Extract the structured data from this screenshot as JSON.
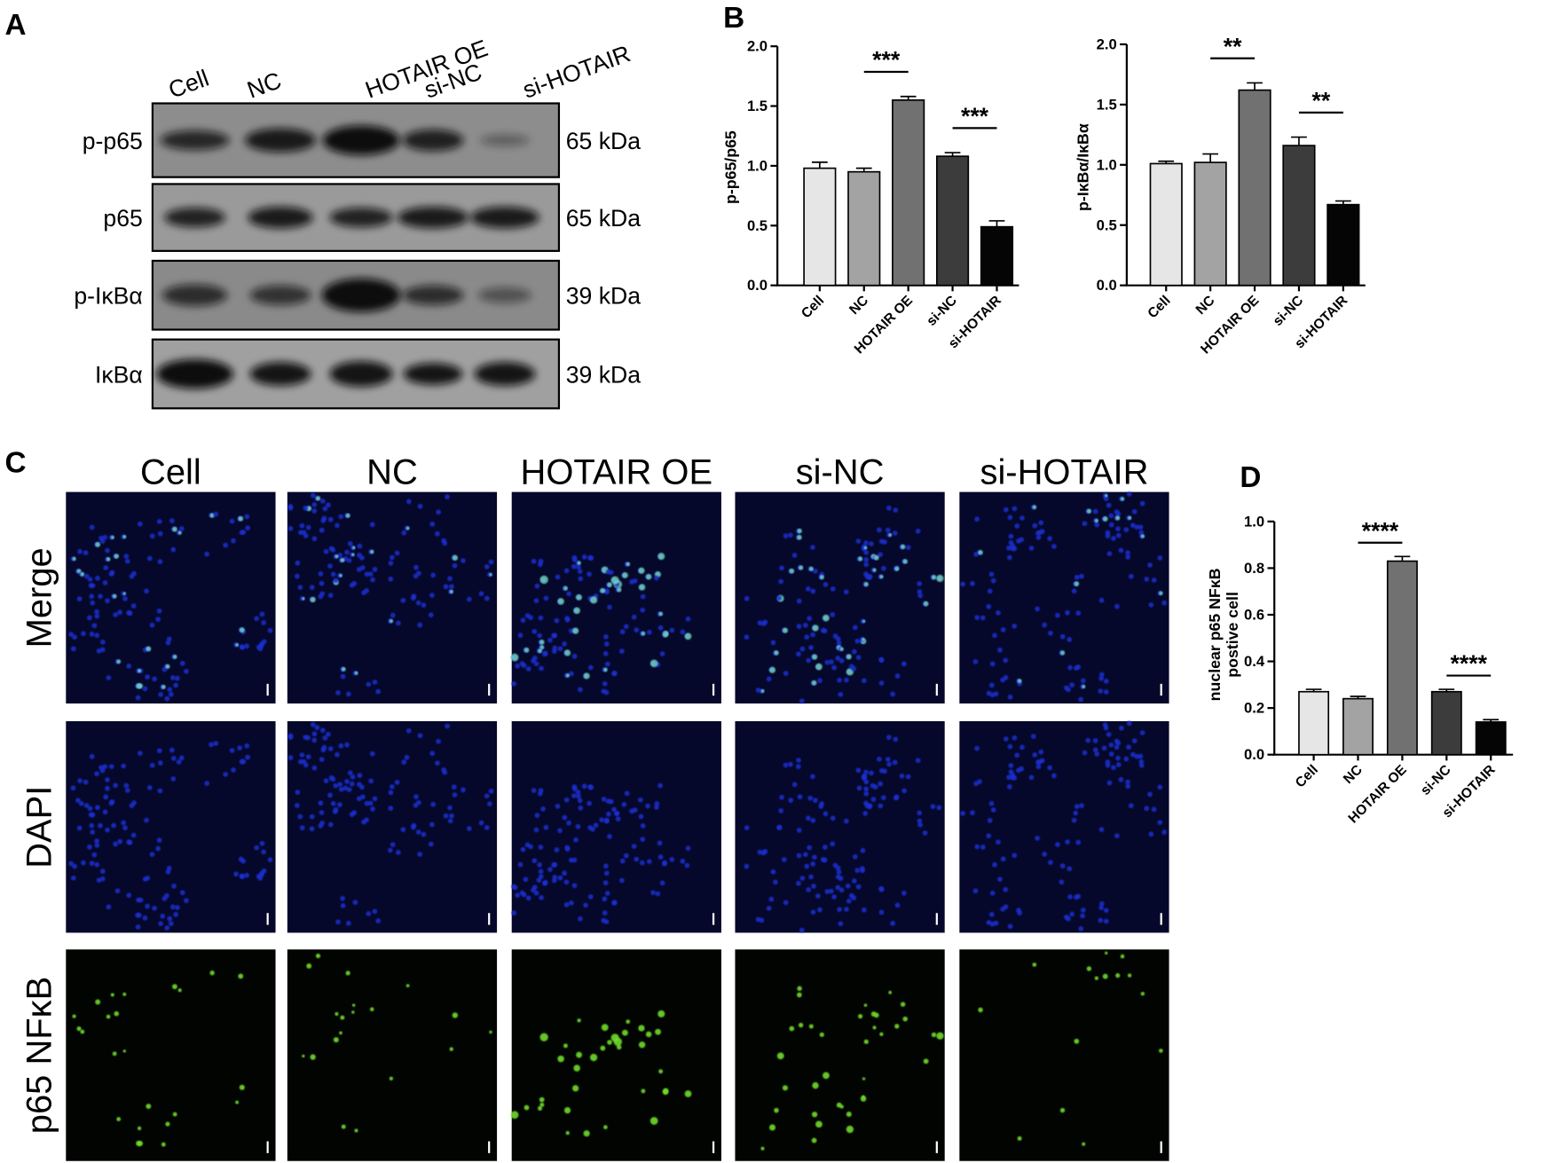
{
  "panel_labels": [
    "A",
    "B",
    "C",
    "D"
  ],
  "western_blot": {
    "lanes": [
      "Cell",
      "NC",
      "HOTAIR OE",
      "si-NC",
      "si-HOTAIR"
    ],
    "rows": [
      {
        "protein": "p-p65",
        "size": "65 kDa"
      },
      {
        "protein": "p65",
        "size": "65 kDa"
      },
      {
        "protein": "p-IκBα",
        "size": "39 kDa"
      },
      {
        "protein": "IκBα",
        "size": "39 kDa"
      }
    ]
  },
  "immunofluorescence": {
    "columns": [
      "Cell",
      "NC",
      "HOTAIR OE",
      "si-NC",
      "si-HOTAIR"
    ],
    "rows": [
      "Merge",
      "DAPI",
      "p65 NFκB"
    ]
  },
  "chart_data": [
    {
      "type": "bar",
      "y_label": "p-p65/p65",
      "categories": [
        "Cell",
        "NC",
        "HOTAIR OE",
        "si-NC",
        "si-HOTAIR"
      ],
      "values": [
        0.98,
        0.95,
        1.55,
        1.08,
        0.49
      ],
      "errors": [
        0.05,
        0.03,
        0.03,
        0.03,
        0.05
      ],
      "colors": [
        "#e6e6e6",
        "#a3a3a3",
        "#717171",
        "#3c3c3c",
        "#050505"
      ],
      "ylim": [
        0,
        2
      ],
      "yticks": [
        {
          "value": 0,
          "label": "0.0"
        },
        0.5,
        {
          "value": 1,
          "label": "1.0"
        },
        1.5,
        {
          "value": 2,
          "label": "2.0"
        }
      ],
      "significance": [
        {
          "groups": [
            "NC",
            "HOTAIR OE"
          ],
          "label": "***"
        },
        {
          "groups": [
            "si-NC",
            "si-HOTAIR"
          ],
          "label": "***"
        }
      ]
    },
    {
      "type": "bar",
      "y_label": "p-IκBα/IκBα",
      "categories": [
        "Cell",
        "NC",
        "HOTAIR OE",
        "si-NC",
        "si-HOTAIR"
      ],
      "values": [
        1.01,
        1.02,
        1.62,
        1.16,
        0.67
      ],
      "errors": [
        0.02,
        0.07,
        0.06,
        0.07,
        0.03
      ],
      "colors": [
        "#e6e6e6",
        "#a3a3a3",
        "#717171",
        "#3c3c3c",
        "#050505"
      ],
      "ylim": [
        0,
        2
      ],
      "yticks": [
        {
          "value": 0,
          "label": "0.0"
        },
        0.5,
        {
          "value": 1,
          "label": "1.0"
        },
        1.5,
        {
          "value": 2,
          "label": "2.0"
        }
      ],
      "significance": [
        {
          "groups": [
            "NC",
            "HOTAIR OE"
          ],
          "label": "**"
        },
        {
          "groups": [
            "si-NC",
            "si-HOTAIR"
          ],
          "label": "**"
        }
      ]
    },
    {
      "type": "bar",
      "y_label": [
        "nuclear p65  NFκB",
        "postive cell"
      ],
      "categories": [
        "Cell",
        "NC",
        "HOTAIR OE",
        "si-NC",
        "si-HOTAIR"
      ],
      "values": [
        0.27,
        0.24,
        0.83,
        0.27,
        0.14
      ],
      "errors": [
        0.01,
        0.01,
        0.02,
        0.01,
        0.01
      ],
      "colors": [
        "#e6e6e6",
        "#a3a3a3",
        "#717171",
        "#3c3c3c",
        "#050505"
      ],
      "ylim": [
        0,
        1
      ],
      "yticks": [
        {
          "value": 0,
          "label": "0.0"
        },
        0.2,
        0.4,
        0.6,
        0.8,
        {
          "value": 1,
          "label": "1.0"
        }
      ],
      "significance": [
        {
          "groups": [
            "NC",
            "HOTAIR OE"
          ],
          "label": "****"
        },
        {
          "groups": [
            "si-NC",
            "si-HOTAIR"
          ],
          "label": "****"
        }
      ]
    }
  ]
}
